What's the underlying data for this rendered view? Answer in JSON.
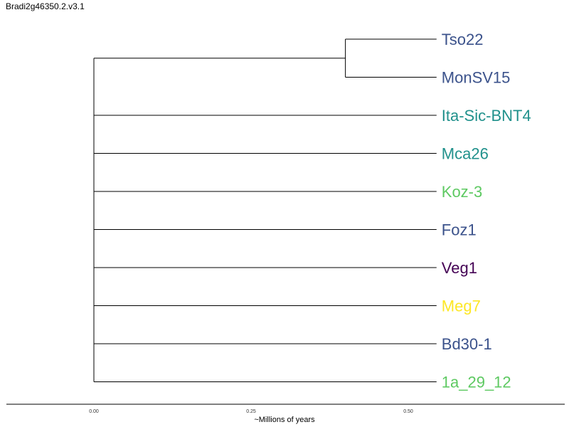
{
  "title": "Bradi2g46350.2.v3.1",
  "tree": {
    "root_x": 0.0,
    "tip_x": 0.545,
    "leaves": [
      {
        "name": "Tso22",
        "color": "#3b528b"
      },
      {
        "name": "MonSV15",
        "color": "#3b528b"
      },
      {
        "name": "Ita-Sic-BNT4",
        "color": "#21918c"
      },
      {
        "name": "Mca26",
        "color": "#21918c"
      },
      {
        "name": "Koz-3",
        "color": "#5ec962"
      },
      {
        "name": "Foz1",
        "color": "#3b528b"
      },
      {
        "name": "Veg1",
        "color": "#440154"
      },
      {
        "name": "Meg7",
        "color": "#fde725"
      },
      {
        "name": "Bd30-1",
        "color": "#3b528b"
      },
      {
        "name": "1a_29_12",
        "color": "#5ec962"
      }
    ],
    "clades": [
      {
        "members": [
          "Tso22",
          "MonSV15"
        ],
        "node_x": 0.4
      }
    ]
  },
  "axis": {
    "label": "~Millions of years",
    "ticks": [
      {
        "value": 0.0,
        "label": "0.00"
      },
      {
        "value": 0.25,
        "label": "0.25"
      },
      {
        "value": 0.5,
        "label": "0.50"
      }
    ]
  }
}
